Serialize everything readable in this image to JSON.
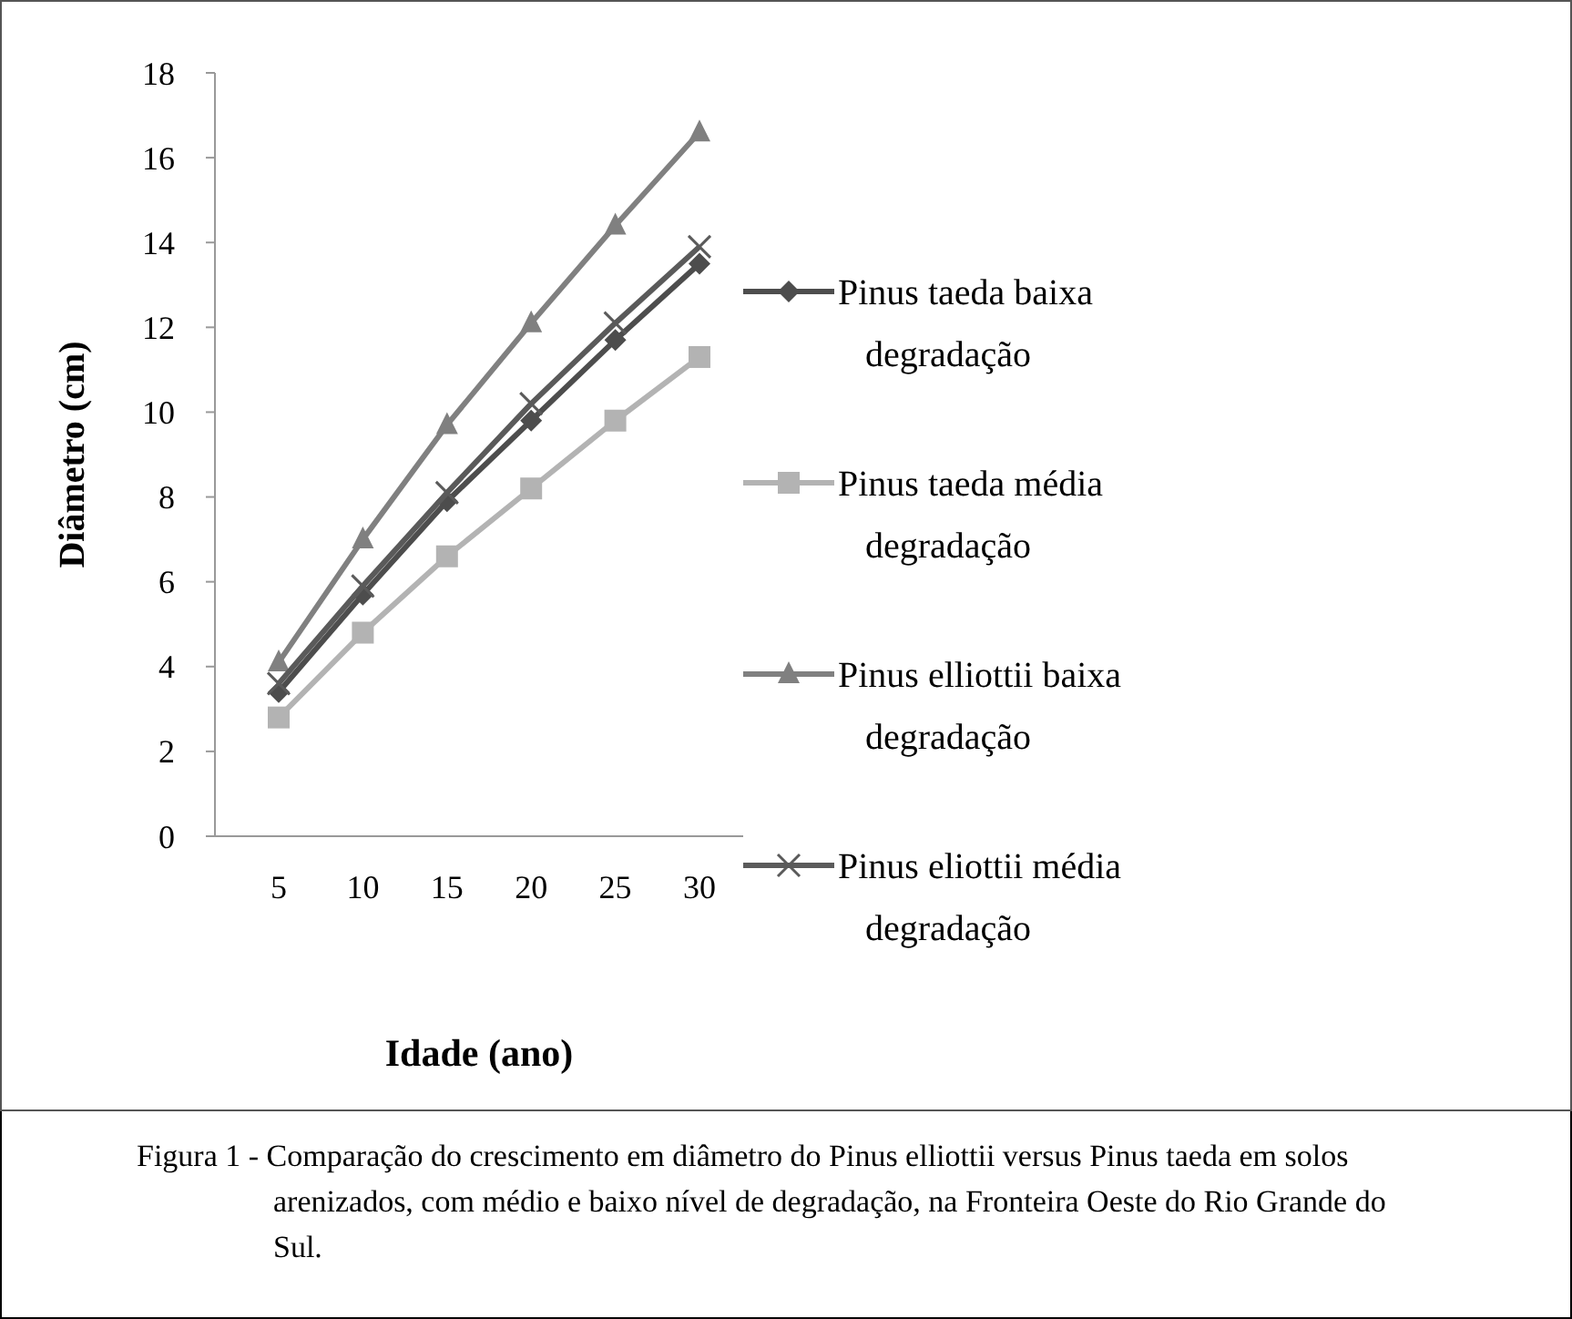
{
  "chart_data": {
    "type": "line",
    "xlabel": "Idade (ano)",
    "ylabel": "Diâmetro (cm)",
    "categories": [
      "5",
      "10",
      "15",
      "20",
      "25",
      "30"
    ],
    "ylim": [
      0,
      18
    ],
    "yticks": [
      0,
      2,
      4,
      6,
      8,
      10,
      12,
      14,
      16,
      18
    ],
    "grid": false,
    "legend": "right",
    "line_style": "solid",
    "series": [
      {
        "name": "Pinus taeda baixa degradação",
        "color": "#4d4d4d",
        "marker": "diamond",
        "values": [
          3.4,
          5.7,
          7.9,
          9.8,
          11.7,
          13.5
        ]
      },
      {
        "name": "Pinus taeda média degradação",
        "color": "#b3b3b3",
        "marker": "square",
        "values": [
          2.8,
          4.8,
          6.6,
          8.2,
          9.8,
          11.3
        ]
      },
      {
        "name": "Pinus elliottii baixa degradação",
        "color": "#808080",
        "marker": "triangle",
        "values": [
          4.1,
          7.0,
          9.7,
          12.1,
          14.4,
          16.6
        ]
      },
      {
        "name": "Pinus eliottii média degradação",
        "color": "#5a5a5a",
        "marker": "cross",
        "values": [
          3.6,
          5.9,
          8.1,
          10.2,
          12.1,
          13.9
        ]
      }
    ],
    "annotations": [
      "Figura 1 - Comparação do crescimento em diâmetro do Pinus elliottii versus Pinus taeda em solos arenizados, com médio e baixo nível de degradação, na Fronteira Oeste do Rio Grande do Sul."
    ]
  }
}
